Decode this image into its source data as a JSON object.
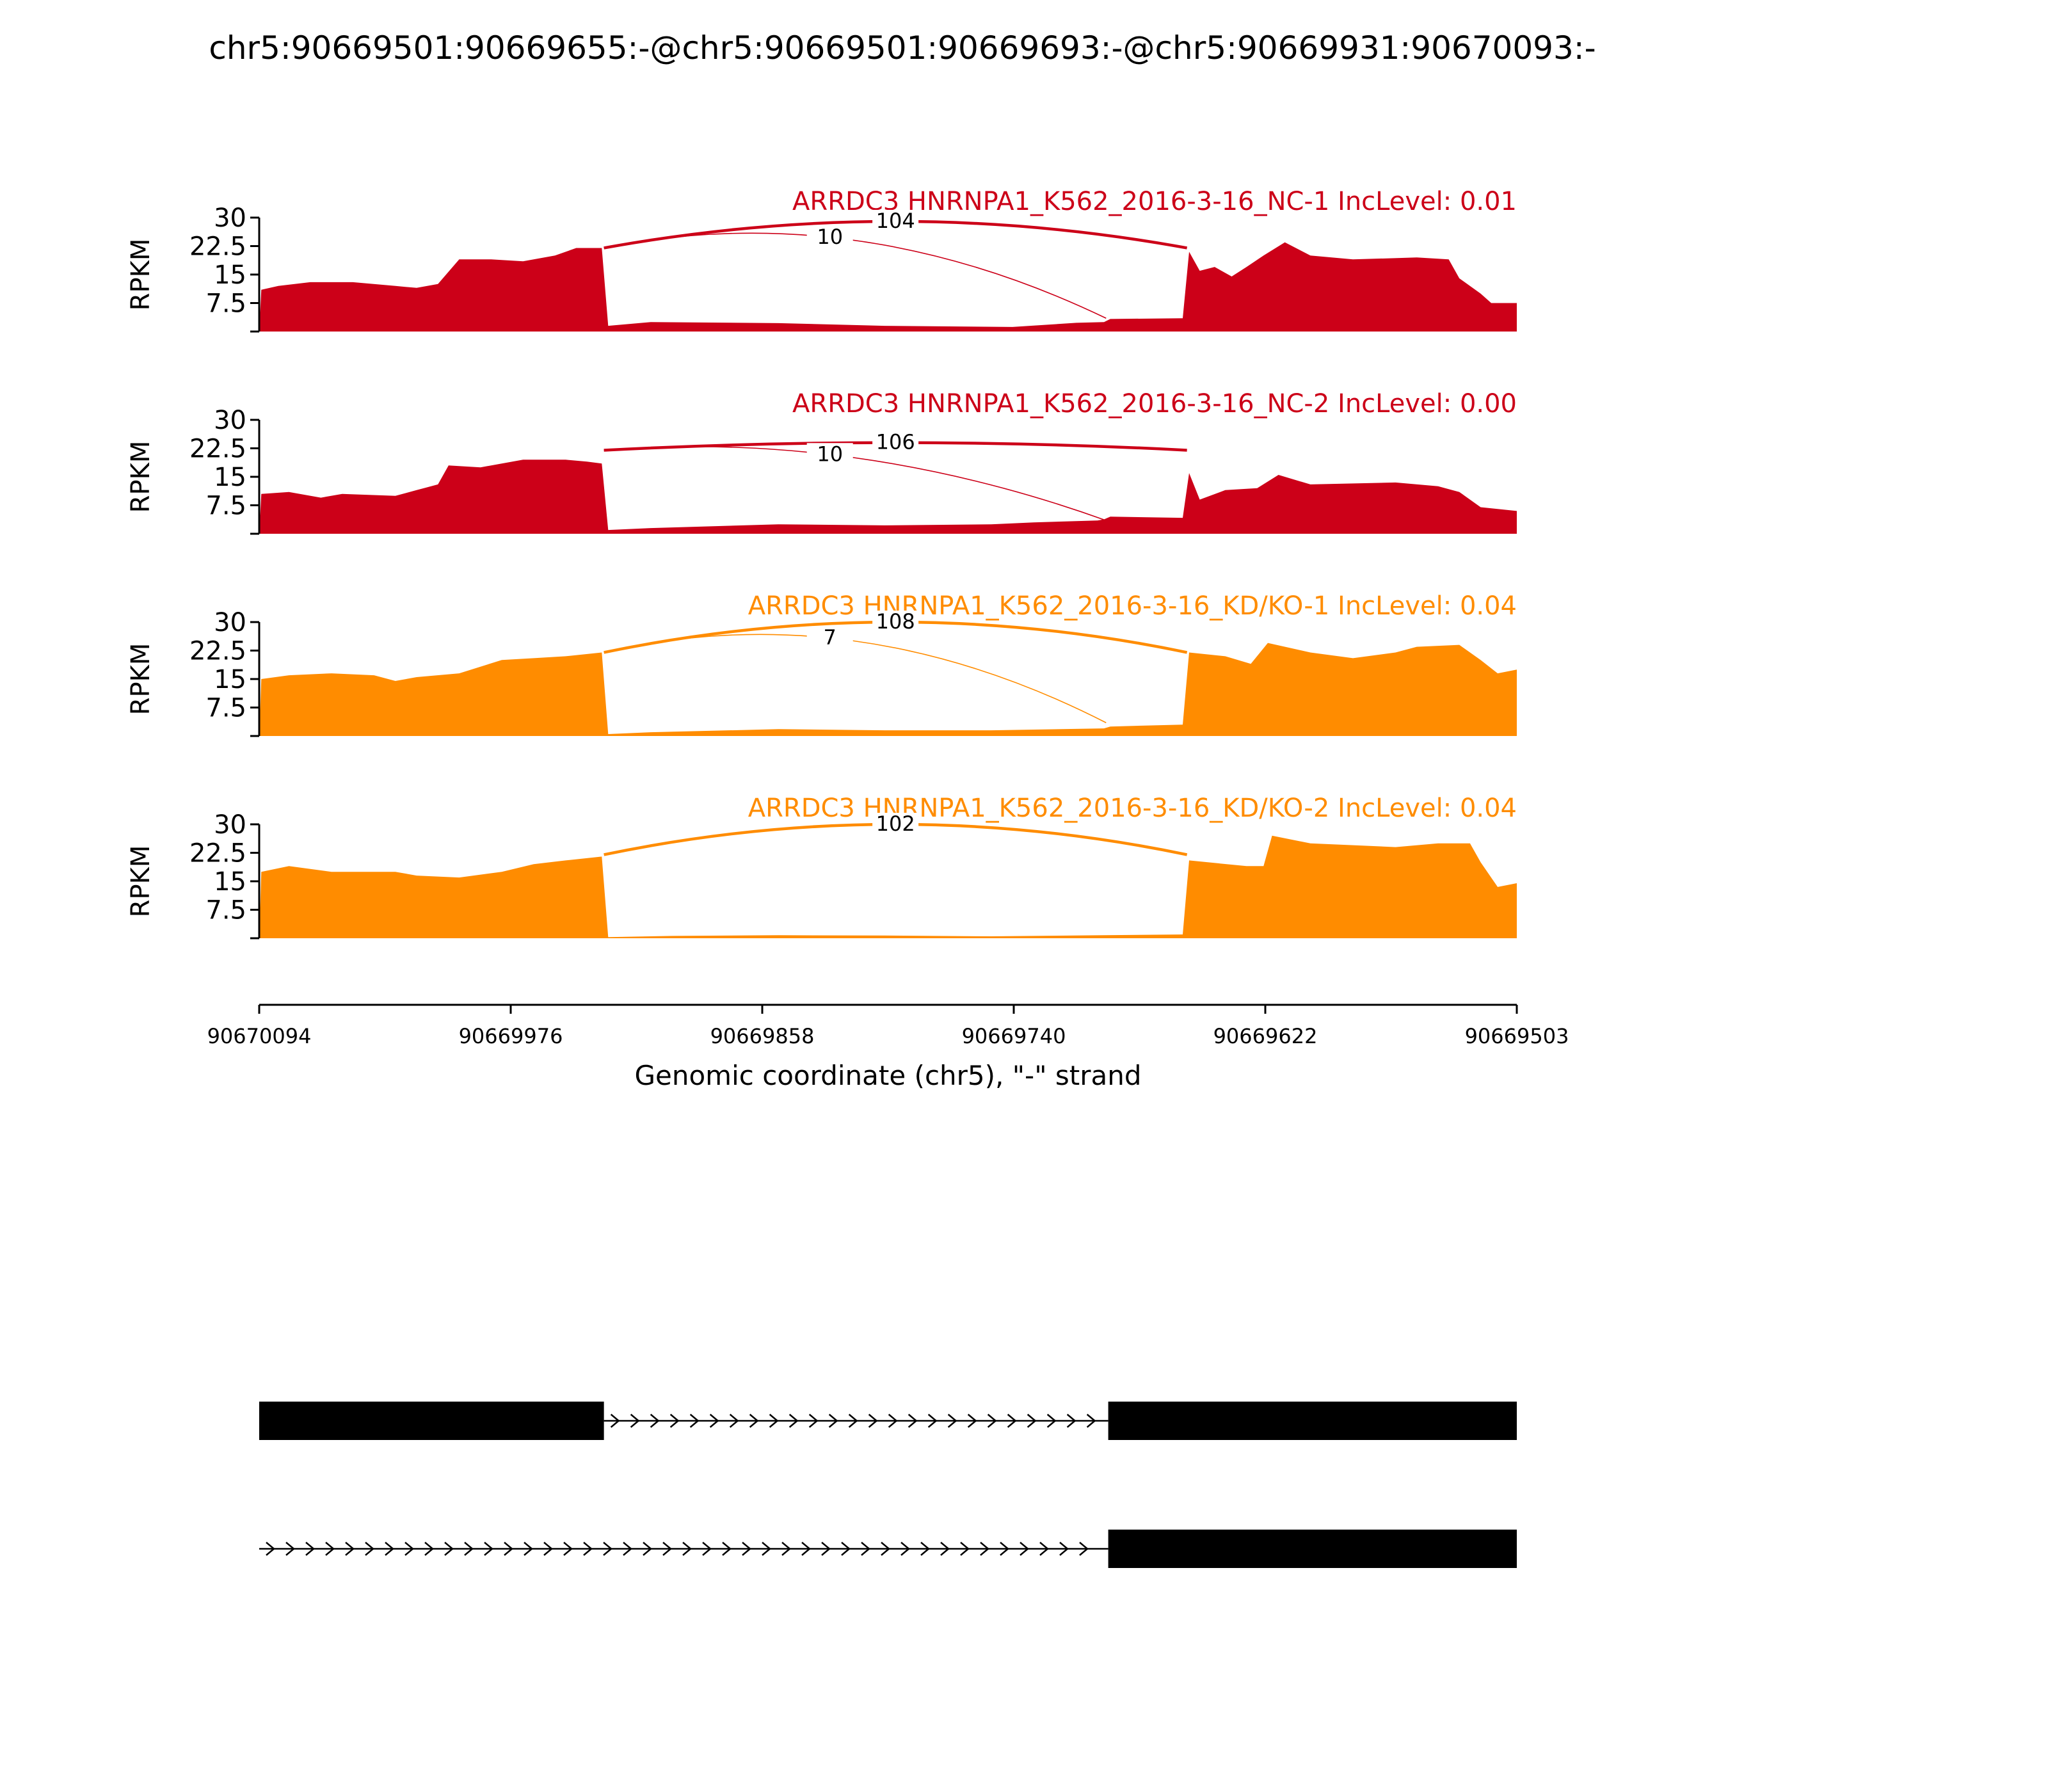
{
  "title": "chr5:90669501:90669655:-@chr5:90669501:90669693:-@chr5:90669931:90670093:-",
  "chart_data": {
    "type": "area",
    "ylabel": "RPKM",
    "yticks": [
      "30",
      "22.5",
      "15",
      "7.5"
    ],
    "ylim": [
      0,
      30
    ],
    "xlabel": "Genomic coordinate (chr5), \"-\" strand",
    "xticks": [
      "90670094",
      "90669976",
      "90669858",
      "90669740",
      "90669622",
      "90669503"
    ],
    "xlim": [
      90670094,
      90669503
    ],
    "panels": [
      {
        "label": "ARRDC3 HNRNPA1_K562_2016-3-16_NC-1 IncLevel: 0.01",
        "color": "#cc0018",
        "junctions": [
          {
            "start": 90669932,
            "end": 90669658,
            "count": "104",
            "peak": 29
          },
          {
            "start": 90669932,
            "end": 90669696,
            "count": "10",
            "peak": 24
          }
        ],
        "coverage": [
          [
            90670094,
            0
          ],
          [
            90670093,
            11
          ],
          [
            90670085,
            12
          ],
          [
            90670070,
            13
          ],
          [
            90670050,
            13
          ],
          [
            90670030,
            12
          ],
          [
            90670020,
            11.5
          ],
          [
            90670010,
            12.5
          ],
          [
            90670000,
            19
          ],
          [
            90669985,
            19
          ],
          [
            90669970,
            18.5
          ],
          [
            90669955,
            20
          ],
          [
            90669945,
            22
          ],
          [
            90669933,
            22
          ],
          [
            90669930,
            1.5
          ],
          [
            90669910,
            2.5
          ],
          [
            90669850,
            2.2
          ],
          [
            90669800,
            1.5
          ],
          [
            90669740,
            1.2
          ],
          [
            90669710,
            2.3
          ],
          [
            90669697,
            2.5
          ],
          [
            90669694,
            3.3
          ],
          [
            90669660,
            3.5
          ],
          [
            90669657,
            21
          ],
          [
            90669652,
            16
          ],
          [
            90669645,
            17
          ],
          [
            90669637,
            14.5
          ],
          [
            90669630,
            17
          ],
          [
            90669622,
            20
          ],
          [
            90669612,
            23.5
          ],
          [
            90669600,
            20
          ],
          [
            90669580,
            19
          ],
          [
            90669550,
            19.5
          ],
          [
            90669535,
            19
          ],
          [
            90669530,
            14
          ],
          [
            90669520,
            10
          ],
          [
            90669515,
            7.5
          ],
          [
            90669503,
            7.5
          ],
          [
            90669503,
            0
          ]
        ]
      },
      {
        "label": "ARRDC3 HNRNPA1_K562_2016-3-16_NC-2 IncLevel: 0.00",
        "color": "#cc0018",
        "junctions": [
          {
            "start": 90669932,
            "end": 90669658,
            "count": "106",
            "peak": 24
          },
          {
            "start": 90669932,
            "end": 90669696,
            "count": "10",
            "peak": 20
          }
        ],
        "coverage": [
          [
            90670094,
            0
          ],
          [
            90670093,
            10.5
          ],
          [
            90670080,
            11
          ],
          [
            90670065,
            9.5
          ],
          [
            90670055,
            10.5
          ],
          [
            90670030,
            10
          ],
          [
            90670020,
            11.5
          ],
          [
            90670010,
            13
          ],
          [
            90670005,
            18
          ],
          [
            90669990,
            17.5
          ],
          [
            90669970,
            19.5
          ],
          [
            90669950,
            19.5
          ],
          [
            90669940,
            19
          ],
          [
            90669933,
            18.5
          ],
          [
            90669930,
            1
          ],
          [
            90669910,
            1.5
          ],
          [
            90669850,
            2.5
          ],
          [
            90669800,
            2.2
          ],
          [
            90669750,
            2.5
          ],
          [
            90669730,
            3
          ],
          [
            90669700,
            3.5
          ],
          [
            90669697,
            3.8
          ],
          [
            90669694,
            4.5
          ],
          [
            90669660,
            4.2
          ],
          [
            90669657,
            16
          ],
          [
            90669652,
            9
          ],
          [
            90669640,
            11.5
          ],
          [
            90669625,
            12
          ],
          [
            90669615,
            15.5
          ],
          [
            90669600,
            13
          ],
          [
            90669560,
            13.5
          ],
          [
            90669540,
            12.5
          ],
          [
            90669530,
            11
          ],
          [
            90669520,
            7
          ],
          [
            90669503,
            6
          ],
          [
            90669503,
            0
          ]
        ]
      },
      {
        "label": "ARRDC3 HNRNPA1_K562_2016-3-16_KD/KO-1 IncLevel: 0.04",
        "color": "#ff8c00",
        "junctions": [
          {
            "start": 90669932,
            "end": 90669658,
            "count": "108",
            "peak": 30
          },
          {
            "start": 90669932,
            "end": 90669696,
            "count": "7",
            "peak": 25
          }
        ],
        "coverage": [
          [
            90670094,
            0
          ],
          [
            90670093,
            15
          ],
          [
            90670080,
            16
          ],
          [
            90670060,
            16.5
          ],
          [
            90670040,
            16
          ],
          [
            90670030,
            14.5
          ],
          [
            90670020,
            15.5
          ],
          [
            90670000,
            16.5
          ],
          [
            90669980,
            20
          ],
          [
            90669965,
            20.5
          ],
          [
            90669950,
            21
          ],
          [
            90669933,
            22
          ],
          [
            90669930,
            0.5
          ],
          [
            90669910,
            1
          ],
          [
            90669850,
            1.8
          ],
          [
            90669800,
            1.5
          ],
          [
            90669750,
            1.5
          ],
          [
            90669697,
            2
          ],
          [
            90669694,
            2.5
          ],
          [
            90669660,
            3
          ],
          [
            90669657,
            22
          ],
          [
            90669640,
            21
          ],
          [
            90669628,
            19
          ],
          [
            90669620,
            24.5
          ],
          [
            90669600,
            22
          ],
          [
            90669580,
            20.5
          ],
          [
            90669560,
            22
          ],
          [
            90669550,
            23.5
          ],
          [
            90669530,
            24
          ],
          [
            90669520,
            20
          ],
          [
            90669512,
            16.5
          ],
          [
            90669503,
            17.5
          ],
          [
            90669503,
            0
          ]
        ]
      },
      {
        "label": "ARRDC3 HNRNPA1_K562_2016-3-16_KD/KO-2 IncLevel: 0.04",
        "color": "#ff8c00",
        "junctions": [
          {
            "start": 90669932,
            "end": 90669658,
            "count": "102",
            "peak": 30
          }
        ],
        "coverage": [
          [
            90670094,
            0
          ],
          [
            90670093,
            17.5
          ],
          [
            90670080,
            19
          ],
          [
            90670060,
            17.5
          ],
          [
            90670040,
            17.5
          ],
          [
            90670030,
            17.5
          ],
          [
            90670020,
            16.5
          ],
          [
            90670000,
            16
          ],
          [
            90669980,
            17.5
          ],
          [
            90669965,
            19.5
          ],
          [
            90669950,
            20.5
          ],
          [
            90669933,
            21.5
          ],
          [
            90669930,
            0.3
          ],
          [
            90669900,
            0.6
          ],
          [
            90669850,
            0.8
          ],
          [
            90669800,
            0.7
          ],
          [
            90669750,
            0.5
          ],
          [
            90669697,
            0.8
          ],
          [
            90669660,
            1
          ],
          [
            90669657,
            20.5
          ],
          [
            90669630,
            19
          ],
          [
            90669622,
            19
          ],
          [
            90669618,
            27
          ],
          [
            90669600,
            25
          ],
          [
            90669580,
            24.5
          ],
          [
            90669560,
            24
          ],
          [
            90669540,
            25
          ],
          [
            90669525,
            25
          ],
          [
            90669520,
            20
          ],
          [
            90669512,
            13.5
          ],
          [
            90669503,
            14.5
          ],
          [
            90669503,
            0
          ]
        ]
      }
    ],
    "transcripts": [
      {
        "exons": [
          [
            90670094,
            90669932
          ],
          [
            90669695,
            90669503
          ]
        ]
      },
      {
        "exons": [
          [
            90669695,
            90669503
          ]
        ],
        "intron_start": 90670094
      }
    ]
  }
}
